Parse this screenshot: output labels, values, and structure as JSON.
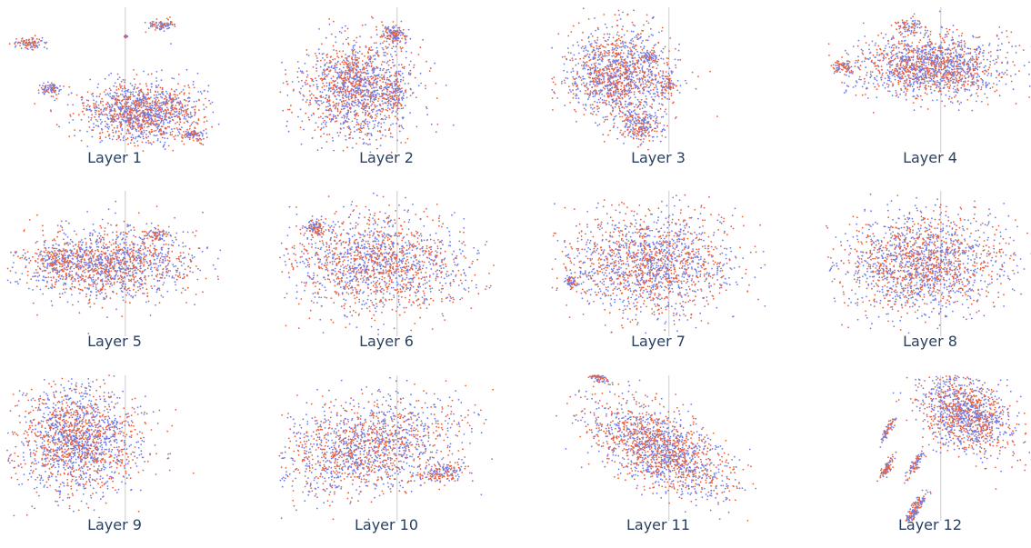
{
  "chart_data": [
    {
      "type": "scatter",
      "title": "Layer 1",
      "grid": false,
      "legend": "none",
      "colors": [
        "#e8603c",
        "#6e7ce8"
      ],
      "shape": "wide blob with several small separated clusters"
    },
    {
      "type": "scatter",
      "title": "Layer 2",
      "grid": false,
      "legend": "none",
      "colors": [
        "#e8603c",
        "#6e7ce8"
      ],
      "shape": "round blob with small side clusters"
    },
    {
      "type": "scatter",
      "title": "Layer 3",
      "grid": false,
      "legend": "none",
      "colors": [
        "#e8603c",
        "#6e7ce8"
      ],
      "shape": "round blob with small clusters"
    },
    {
      "type": "scatter",
      "title": "Layer 4",
      "grid": false,
      "legend": "none",
      "colors": [
        "#e8603c",
        "#6e7ce8"
      ],
      "shape": "elongated ellipse with small left cluster"
    },
    {
      "type": "scatter",
      "title": "Layer 5",
      "grid": false,
      "legend": "none",
      "colors": [
        "#e8603c",
        "#6e7ce8"
      ],
      "shape": "wide ellipse"
    },
    {
      "type": "scatter",
      "title": "Layer 6",
      "grid": false,
      "legend": "none",
      "colors": [
        "#e8603c",
        "#6e7ce8"
      ],
      "shape": "wide ellipse"
    },
    {
      "type": "scatter",
      "title": "Layer 7",
      "grid": false,
      "legend": "none",
      "colors": [
        "#e8603c",
        "#6e7ce8"
      ],
      "shape": "wide ellipse"
    },
    {
      "type": "scatter",
      "title": "Layer 8",
      "grid": false,
      "legend": "none",
      "colors": [
        "#e8603c",
        "#6e7ce8"
      ],
      "shape": "wide ellipse"
    },
    {
      "type": "scatter",
      "title": "Layer 9",
      "grid": false,
      "legend": "none",
      "colors": [
        "#e8603c",
        "#6e7ce8"
      ],
      "shape": "round blob"
    },
    {
      "type": "scatter",
      "title": "Layer 10",
      "grid": false,
      "legend": "none",
      "colors": [
        "#e8603c",
        "#6e7ce8"
      ],
      "shape": "slanted ellipse"
    },
    {
      "type": "scatter",
      "title": "Layer 11",
      "grid": false,
      "legend": "none",
      "colors": [
        "#e8603c",
        "#6e7ce8"
      ],
      "shape": "diagonal band"
    },
    {
      "type": "scatter",
      "title": "Layer 12",
      "grid": false,
      "legend": "none",
      "colors": [
        "#e8603c",
        "#6e7ce8"
      ],
      "shape": "several separated streaks"
    }
  ]
}
